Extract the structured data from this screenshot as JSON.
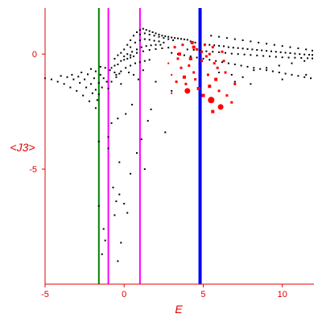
{
  "chart_data": {
    "type": "scatter",
    "title": "",
    "xlabel": "E",
    "ylabel": "<J3>",
    "xlim": [
      -5,
      12
    ],
    "ylim": [
      -10,
      2
    ],
    "x_ticks": [
      -5,
      0,
      5,
      10
    ],
    "y_ticks": [
      0,
      -5
    ],
    "grid": false,
    "colors": {
      "axes": "#e00000",
      "black_points": "#000000",
      "red_points": "#ff0000",
      "green_line": "#008000",
      "magenta_line": "#ff00ff",
      "blue_line": "#0000ff"
    },
    "vertical_lines": [
      {
        "x": -1.6,
        "color": "#008000",
        "width": 2
      },
      {
        "x": -1.0,
        "color": "#ff00ff",
        "width": 2
      },
      {
        "x": 1.0,
        "color": "#ff00ff",
        "width": 2
      },
      {
        "x": 4.8,
        "color": "#0000ff",
        "width": 4
      }
    ],
    "series": [
      {
        "color": "#000000",
        "points": [
          [
            -5.0,
            -1.05
          ],
          [
            -4.6,
            -1.1
          ],
          [
            -4.2,
            -1.2
          ],
          [
            -3.8,
            -1.3
          ],
          [
            -3.4,
            -1.45
          ],
          [
            -3.0,
            -1.6
          ],
          [
            -2.6,
            -1.8
          ],
          [
            -2.2,
            -2.05
          ],
          [
            -1.8,
            -2.35
          ],
          [
            -4.0,
            -0.95
          ],
          [
            -3.6,
            -1.0
          ],
          [
            -3.2,
            -1.1
          ],
          [
            -2.8,
            -1.25
          ],
          [
            -2.4,
            -1.45
          ],
          [
            -2.0,
            -1.7
          ],
          [
            -1.7,
            -2.0
          ],
          [
            -3.3,
            -0.9
          ],
          [
            -2.9,
            -0.98
          ],
          [
            -2.5,
            -1.1
          ],
          [
            -2.1,
            -1.3
          ],
          [
            -1.8,
            -1.55
          ],
          [
            -1.6,
            -1.75
          ],
          [
            -2.7,
            -0.8
          ],
          [
            -2.3,
            -0.88
          ],
          [
            -1.9,
            -1.05
          ],
          [
            -1.6,
            -1.25
          ],
          [
            -1.4,
            -1.45
          ],
          [
            -2.1,
            -0.65
          ],
          [
            -1.8,
            -0.75
          ],
          [
            -1.5,
            -0.9
          ],
          [
            -1.3,
            -1.05
          ],
          [
            -1.1,
            -1.2
          ],
          [
            -1.5,
            -0.55
          ],
          [
            -1.2,
            -0.6
          ],
          [
            -0.9,
            -0.7
          ],
          [
            -0.6,
            -0.8
          ],
          [
            -0.3,
            -0.85
          ],
          [
            -1.6,
            -3.8
          ],
          [
            -1.6,
            -6.6
          ],
          [
            -1.4,
            -8.7
          ],
          [
            -1.3,
            -7.6
          ],
          [
            -1.2,
            -8.1
          ],
          [
            -1.0,
            -3.6
          ],
          [
            -1.0,
            -4.1
          ],
          [
            -0.8,
            -3.0
          ],
          [
            -0.7,
            -5.8
          ],
          [
            -0.6,
            -7.0
          ],
          [
            -0.5,
            -6.4
          ],
          [
            -0.4,
            -2.8
          ],
          [
            -0.4,
            -9.0
          ],
          [
            -0.3,
            -4.7
          ],
          [
            -0.3,
            -6.1
          ],
          [
            -0.2,
            -8.2
          ],
          [
            0.0,
            -6.5
          ],
          [
            0.1,
            -2.6
          ],
          [
            0.2,
            -6.9
          ],
          [
            0.4,
            -5.2
          ],
          [
            0.5,
            -2.2
          ],
          [
            0.8,
            -4.3
          ],
          [
            1.1,
            -3.7
          ],
          [
            1.3,
            -5.0
          ],
          [
            1.5,
            -2.9
          ],
          [
            1.7,
            -2.4
          ],
          [
            2.0,
            -1.2
          ],
          [
            2.6,
            -3.4
          ],
          [
            3.0,
            -1.6
          ],
          [
            -0.8,
            -0.6
          ],
          [
            -0.6,
            -0.5
          ],
          [
            -0.4,
            -0.45
          ],
          [
            -0.2,
            -0.3
          ],
          [
            0.0,
            -0.25
          ],
          [
            0.2,
            -0.2
          ],
          [
            0.4,
            -0.15
          ],
          [
            0.6,
            -0.1
          ],
          [
            -0.6,
            -0.2
          ],
          [
            -0.4,
            -0.05
          ],
          [
            -0.2,
            0.05
          ],
          [
            0.0,
            0.2
          ],
          [
            0.2,
            0.4
          ],
          [
            0.4,
            0.6
          ],
          [
            0.6,
            0.8
          ],
          [
            0.8,
            0.95
          ],
          [
            1.0,
            1.05
          ],
          [
            1.2,
            1.1
          ],
          [
            1.4,
            1.05
          ],
          [
            1.6,
            1.0
          ],
          [
            1.8,
            0.95
          ],
          [
            2.0,
            0.9
          ],
          [
            2.2,
            0.85
          ],
          [
            2.4,
            0.8
          ],
          [
            2.6,
            0.78
          ],
          [
            2.8,
            0.75
          ],
          [
            3.0,
            0.72
          ],
          [
            3.2,
            0.7
          ],
          [
            3.4,
            0.68
          ],
          [
            3.6,
            0.66
          ],
          [
            3.8,
            0.64
          ],
          [
            4.0,
            0.62
          ],
          [
            1.0,
            0.85
          ],
          [
            1.3,
            0.9
          ],
          [
            1.6,
            0.85
          ],
          [
            1.9,
            0.8
          ],
          [
            2.2,
            0.75
          ],
          [
            2.5,
            0.7
          ],
          [
            2.8,
            0.65
          ],
          [
            3.1,
            0.6
          ],
          [
            0.4,
            0.3
          ],
          [
            0.7,
            0.5
          ],
          [
            1.0,
            0.6
          ],
          [
            1.3,
            0.65
          ],
          [
            1.6,
            0.62
          ],
          [
            1.9,
            0.58
          ],
          [
            2.2,
            0.55
          ],
          [
            2.5,
            0.5
          ],
          [
            0.2,
            0.0
          ],
          [
            0.5,
            0.1
          ],
          [
            0.8,
            0.2
          ],
          [
            1.1,
            0.3
          ],
          [
            1.4,
            0.35
          ],
          [
            1.7,
            0.38
          ],
          [
            2.0,
            0.4
          ],
          [
            2.3,
            0.4
          ],
          [
            0.0,
            -0.1
          ],
          [
            0.4,
            -0.05
          ],
          [
            0.8,
            0.05
          ],
          [
            1.2,
            0.12
          ],
          [
            1.6,
            0.18
          ],
          [
            2.0,
            0.22
          ],
          [
            2.4,
            0.25
          ],
          [
            2.8,
            0.28
          ],
          [
            -0.5,
            -0.9
          ],
          [
            -0.2,
            -0.75
          ],
          [
            0.1,
            -0.6
          ],
          [
            0.4,
            -0.5
          ],
          [
            0.7,
            -0.4
          ],
          [
            1.0,
            -0.35
          ],
          [
            1.3,
            -0.3
          ],
          [
            1.6,
            -0.25
          ],
          [
            -1.0,
            -1.5
          ],
          [
            -0.8,
            -1.2
          ],
          [
            -0.5,
            -1.0
          ],
          [
            -0.2,
            -1.3
          ],
          [
            0.3,
            -0.8
          ],
          [
            0.6,
            -0.9
          ],
          [
            0.9,
            -1.1
          ],
          [
            1.2,
            -0.7
          ],
          [
            4.2,
            0.55
          ],
          [
            4.5,
            0.5
          ],
          [
            4.8,
            0.45
          ],
          [
            5.1,
            0.42
          ],
          [
            5.4,
            0.4
          ],
          [
            5.7,
            0.38
          ],
          [
            6.0,
            0.36
          ],
          [
            6.3,
            0.34
          ],
          [
            6.6,
            0.3
          ],
          [
            6.9,
            0.28
          ],
          [
            7.2,
            0.26
          ],
          [
            7.5,
            0.24
          ],
          [
            7.8,
            0.22
          ],
          [
            8.1,
            0.2
          ],
          [
            8.4,
            0.18
          ],
          [
            8.7,
            0.16
          ],
          [
            9.0,
            0.14
          ],
          [
            9.3,
            0.12
          ],
          [
            9.6,
            0.1
          ],
          [
            9.9,
            0.08
          ],
          [
            10.2,
            0.06
          ],
          [
            10.5,
            0.04
          ],
          [
            10.8,
            0.02
          ],
          [
            11.1,
            0.0
          ],
          [
            11.4,
            -0.02
          ],
          [
            11.7,
            -0.03
          ],
          [
            11.9,
            -0.04
          ],
          [
            4.0,
            0.2
          ],
          [
            4.4,
            0.18
          ],
          [
            4.8,
            0.15
          ],
          [
            5.2,
            0.12
          ],
          [
            5.6,
            0.1
          ],
          [
            6.0,
            0.08
          ],
          [
            6.4,
            0.05
          ],
          [
            6.8,
            0.02
          ],
          [
            7.2,
            0.0
          ],
          [
            7.6,
            -0.02
          ],
          [
            8.0,
            -0.04
          ],
          [
            8.4,
            -0.06
          ],
          [
            8.8,
            -0.08
          ],
          [
            9.2,
            -0.1
          ],
          [
            9.6,
            -0.12
          ],
          [
            10.0,
            -0.14
          ],
          [
            10.4,
            -0.15
          ],
          [
            10.8,
            -0.16
          ],
          [
            11.2,
            -0.17
          ],
          [
            11.6,
            -0.18
          ],
          [
            11.9,
            -0.19
          ],
          [
            3.0,
            0.05
          ],
          [
            3.4,
            0.0
          ],
          [
            3.8,
            -0.05
          ],
          [
            4.2,
            -0.1
          ],
          [
            4.6,
            -0.15
          ],
          [
            5.0,
            -0.2
          ],
          [
            5.4,
            -0.25
          ],
          [
            5.8,
            -0.3
          ],
          [
            6.2,
            -0.35
          ],
          [
            6.6,
            -0.4
          ],
          [
            7.0,
            -0.45
          ],
          [
            7.4,
            -0.5
          ],
          [
            7.8,
            -0.55
          ],
          [
            8.2,
            -0.6
          ],
          [
            8.6,
            -0.65
          ],
          [
            9.0,
            -0.7
          ],
          [
            9.4,
            -0.75
          ],
          [
            9.8,
            -0.8
          ],
          [
            10.2,
            -0.85
          ],
          [
            10.6,
            -0.9
          ],
          [
            11.0,
            -0.95
          ],
          [
            11.4,
            -1.0
          ],
          [
            11.8,
            -1.05
          ],
          [
            5.5,
            0.8
          ],
          [
            6.0,
            0.75
          ],
          [
            6.5,
            0.7
          ],
          [
            7.0,
            0.65
          ],
          [
            7.5,
            0.6
          ],
          [
            8.0,
            0.55
          ],
          [
            8.5,
            0.5
          ],
          [
            9.0,
            0.45
          ],
          [
            9.5,
            0.4
          ],
          [
            10.0,
            0.35
          ],
          [
            10.5,
            0.3
          ],
          [
            11.0,
            0.25
          ],
          [
            11.5,
            0.2
          ],
          [
            11.9,
            0.15
          ],
          [
            6.0,
            -0.8
          ],
          [
            6.8,
            -0.9
          ],
          [
            7.5,
            -1.0
          ],
          [
            8.2,
            -0.7
          ],
          [
            9.0,
            -0.6
          ],
          [
            9.8,
            -0.5
          ],
          [
            10.6,
            -0.4
          ],
          [
            11.4,
            -0.3
          ],
          [
            7.0,
            -1.2
          ],
          [
            8.0,
            -1.3
          ],
          [
            10.0,
            -1.1
          ],
          [
            11.5,
            -0.9
          ]
        ]
      },
      {
        "color": "#ff0000",
        "points": [
          [
            2.8,
            -0.4,
            2
          ],
          [
            3.0,
            -0.9,
            2
          ],
          [
            3.2,
            0.3,
            3
          ],
          [
            3.4,
            -0.2,
            3
          ],
          [
            3.5,
            0.0,
            4
          ],
          [
            3.6,
            -0.6,
            3
          ],
          [
            3.7,
            0.4,
            3
          ],
          [
            3.8,
            -1.0,
            4
          ],
          [
            3.9,
            -1.3,
            3
          ],
          [
            4.0,
            -1.6,
            5
          ],
          [
            4.1,
            -0.5,
            3
          ],
          [
            4.2,
            -0.2,
            4
          ],
          [
            4.3,
            0.5,
            4
          ],
          [
            4.4,
            -0.8,
            3
          ],
          [
            4.5,
            -1.1,
            3
          ],
          [
            4.6,
            0.2,
            3
          ],
          [
            4.7,
            -1.5,
            4
          ],
          [
            4.9,
            -0.3,
            3
          ],
          [
            5.0,
            -1.8,
            4
          ],
          [
            5.1,
            0.4,
            3
          ],
          [
            5.2,
            -0.1,
            3
          ],
          [
            5.3,
            -0.9,
            3
          ],
          [
            5.4,
            -1.4,
            4
          ],
          [
            5.5,
            -2.0,
            6
          ],
          [
            5.6,
            0.3,
            3
          ],
          [
            5.7,
            -0.4,
            3
          ],
          [
            5.8,
            -1.1,
            4
          ],
          [
            5.9,
            -0.6,
            3
          ],
          [
            6.0,
            -1.6,
            3
          ],
          [
            6.1,
            -2.3,
            5
          ],
          [
            6.2,
            0.1,
            3
          ],
          [
            6.3,
            -0.3,
            3
          ],
          [
            6.5,
            -1.8,
            3
          ],
          [
            6.8,
            -2.1,
            3
          ],
          [
            7.0,
            -1.3,
            3
          ],
          [
            3.0,
            -1.7,
            2
          ],
          [
            3.3,
            -1.2,
            3
          ],
          [
            4.4,
            0.3,
            4
          ],
          [
            4.9,
            0.1,
            3
          ],
          [
            5.6,
            -2.5,
            4
          ],
          [
            6.4,
            -0.8,
            3
          ],
          [
            5.4,
            0.0,
            3
          ]
        ]
      }
    ]
  }
}
